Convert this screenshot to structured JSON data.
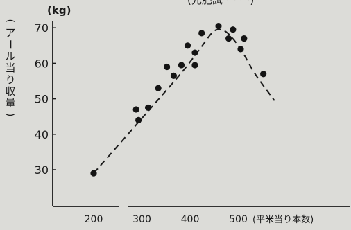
{
  "chart_data": {
    "type": "scatter",
    "top_caption": "(元肥試 ー   ー)",
    "y_unit_label": "(kg)",
    "y_axis_label": "(アール当り収量)",
    "x_axis_label": "(平米当り本数)",
    "x_ticks": [
      200,
      300,
      400,
      500
    ],
    "y_ticks": [
      30,
      40,
      50,
      60,
      70
    ],
    "y_tick_labels": [
      "30",
      "40",
      "50",
      "60",
      "70"
    ],
    "x_tick_labels": [
      "200",
      "300",
      "400",
      "500"
    ],
    "xlim": [
      125,
      590
    ],
    "ylim": [
      24,
      74
    ],
    "x_axis_break": true,
    "grid": false,
    "series": [
      {
        "values": [
          {
            "x": 200,
            "y": 29
          },
          {
            "x": 288,
            "y": 47
          },
          {
            "x": 293,
            "y": 44
          },
          {
            "x": 313,
            "y": 47.5
          },
          {
            "x": 334,
            "y": 53
          },
          {
            "x": 352,
            "y": 59
          },
          {
            "x": 366,
            "y": 56.5
          },
          {
            "x": 382,
            "y": 59.5
          },
          {
            "x": 395,
            "y": 65
          },
          {
            "x": 410,
            "y": 63
          },
          {
            "x": 410,
            "y": 59.5
          },
          {
            "x": 424,
            "y": 68.5
          },
          {
            "x": 459,
            "y": 70.5
          },
          {
            "x": 480,
            "y": 67
          },
          {
            "x": 489,
            "y": 69.5
          },
          {
            "x": 505,
            "y": 64
          },
          {
            "x": 512,
            "y": 67
          },
          {
            "x": 552,
            "y": 57
          }
        ]
      }
    ],
    "fitted_curve": {
      "style": "dashed",
      "points": [
        {
          "x": 200,
          "y": 29
        },
        {
          "x": 300,
          "y": 44.5
        },
        {
          "x": 380,
          "y": 57
        },
        {
          "x": 420,
          "y": 64
        },
        {
          "x": 445,
          "y": 68.5
        },
        {
          "x": 460,
          "y": 69.5
        },
        {
          "x": 478,
          "y": 68.5
        },
        {
          "x": 505,
          "y": 64
        },
        {
          "x": 535,
          "y": 57
        },
        {
          "x": 575,
          "y": 49.5
        }
      ]
    }
  }
}
